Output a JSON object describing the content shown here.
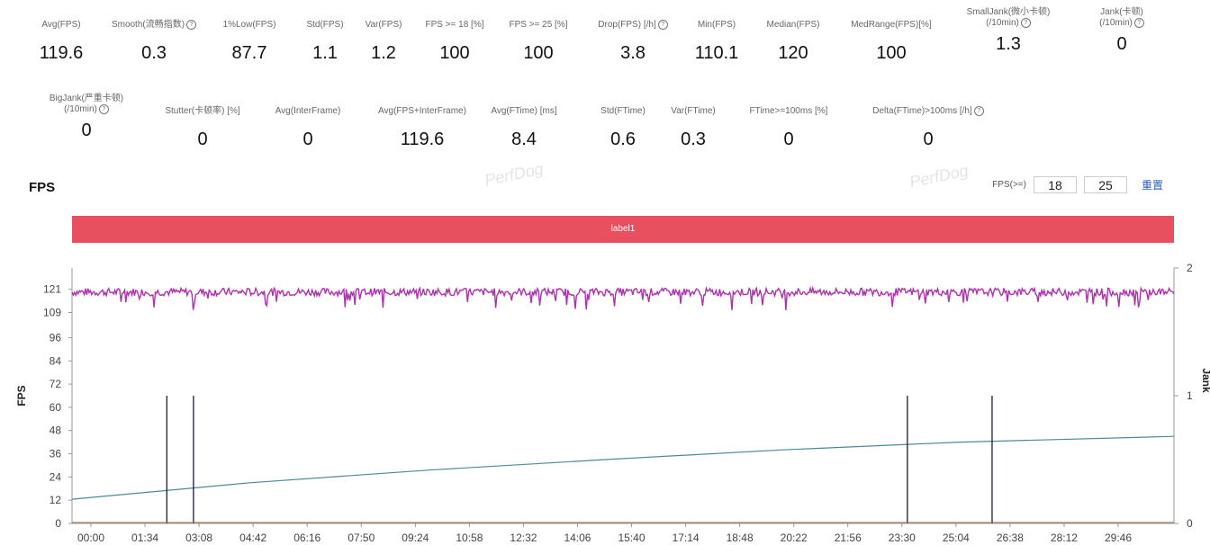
{
  "stats_row1": [
    {
      "label": "Avg(FPS)",
      "value": "119.6",
      "info": false
    },
    {
      "label": "Smooth(流畅指数)",
      "value": "0.3",
      "info": true
    },
    {
      "label": "1%Low(FPS)",
      "value": "87.7",
      "info": false
    },
    {
      "label": "Std(FPS)",
      "value": "1.1",
      "info": false
    },
    {
      "label": "Var(FPS)",
      "value": "1.2",
      "info": false
    },
    {
      "label": "FPS >= 18 [%]",
      "value": "100",
      "info": false
    },
    {
      "label": "FPS >= 25 [%]",
      "value": "100",
      "info": false
    },
    {
      "label": "Drop(FPS) [/h]",
      "value": "3.8",
      "info": true
    },
    {
      "label": "Min(FPS)",
      "value": "110.1",
      "info": false
    },
    {
      "label": "Median(FPS)",
      "value": "120",
      "info": false
    },
    {
      "label": "MedRange(FPS)[%]",
      "value": "100",
      "info": false
    },
    {
      "label": "SmallJank(微小卡顿)",
      "label2": "(/10min)",
      "value": "1.3",
      "info": true
    },
    {
      "label": "Jank(卡顿)",
      "label2": "(/10min)",
      "value": "0",
      "info": true
    }
  ],
  "stats_row2": [
    {
      "label": "BigJank(严重卡顿)",
      "label2": "(/10min)",
      "value": "0",
      "info": true
    },
    {
      "label": "Stutter(卡顿率) [%]",
      "value": "0",
      "info": false
    },
    {
      "label": "Avg(InterFrame)",
      "value": "0",
      "info": false
    },
    {
      "label": "Avg(FPS+InterFrame)",
      "value": "119.6",
      "info": false
    },
    {
      "label": "Avg(FTime) [ms]",
      "value": "8.4",
      "info": false
    },
    {
      "label": "Std(FTime)",
      "value": "0.6",
      "info": false
    },
    {
      "label": "Var(FTime)",
      "value": "0.3",
      "info": false
    },
    {
      "label": "FTime>=100ms [%]",
      "value": "0",
      "info": false
    },
    {
      "label": "Delta(FTime)>100ms [/h]",
      "value": "0",
      "info": true
    }
  ],
  "section_title": "FPS",
  "threshold": {
    "label": "FPS(>=)",
    "value1": "18",
    "value2": "25",
    "reset_label": "重置"
  },
  "label_bar": "label1",
  "watermark": "PerfDog",
  "colors": {
    "fps": "#b030b0",
    "jank": "#1a1a4a",
    "trend": "#4a8a9a",
    "label": "#e8505f"
  },
  "chart_data": {
    "type": "line",
    "ylabel": "FPS",
    "y2label": "Jank",
    "y_ticks": [
      0,
      12,
      24,
      36,
      48,
      60,
      72,
      84,
      96,
      109,
      121
    ],
    "y2_ticks": [
      0,
      1,
      2
    ],
    "ylim": [
      0,
      132
    ],
    "y2lim": [
      0,
      2
    ],
    "x_ticks": [
      "00:00",
      "01:34",
      "03:08",
      "04:42",
      "06:16",
      "07:50",
      "09:24",
      "10:58",
      "12:32",
      "14:06",
      "15:40",
      "17:14",
      "18:48",
      "20:22",
      "21:56",
      "23:30",
      "25:04",
      "26:38",
      "28:12",
      "29:46"
    ],
    "x_range_sec": [
      0,
      1860
    ],
    "series": [
      {
        "name": "FPS",
        "kind": "noisy",
        "mean": 119.6,
        "min": 110.1
      },
      {
        "name": "Jank",
        "kind": "spikes",
        "x_sec": [
          160,
          205,
          1410,
          1553
        ],
        "value": 1
      }
    ],
    "trend": {
      "x_sec": [
        0,
        300,
        600,
        900,
        1200,
        1500,
        1860
      ],
      "y": [
        12.5,
        21,
        27.5,
        33,
        38,
        42,
        45
      ]
    }
  }
}
